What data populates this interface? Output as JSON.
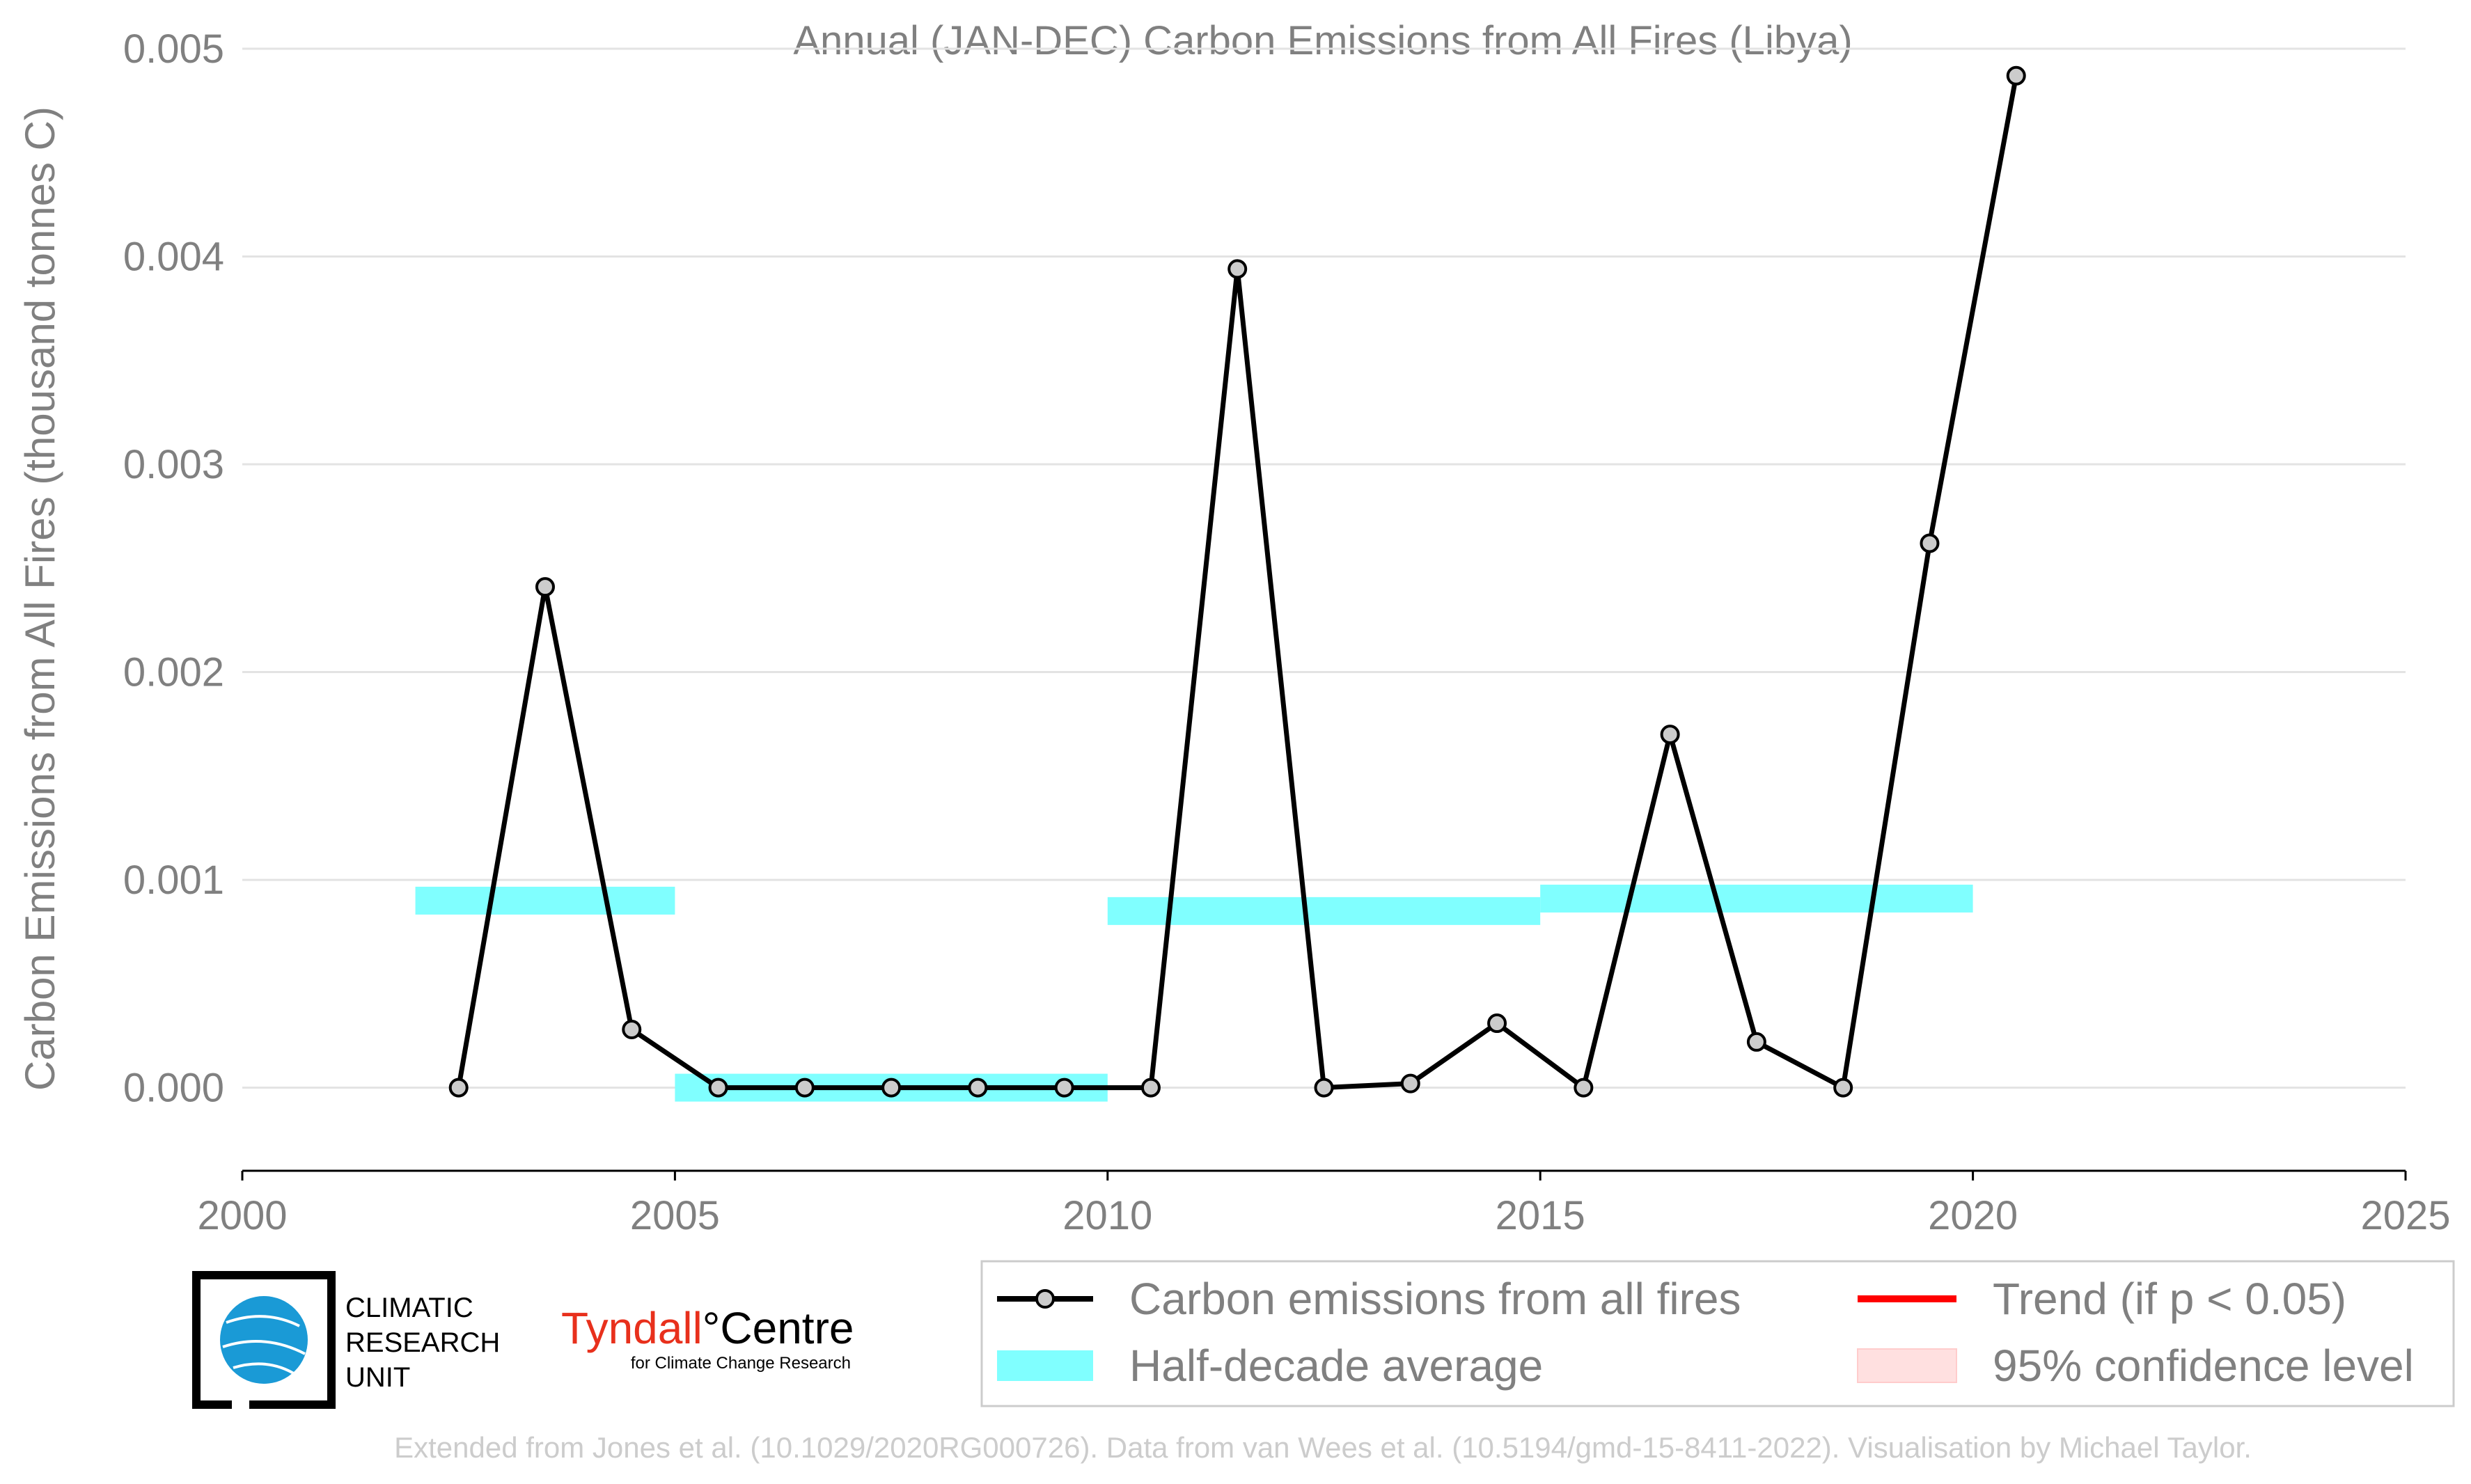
{
  "chart_data": {
    "type": "line",
    "title": "Annual (JAN-DEC) Carbon Emissions from All Fires (Libya)",
    "xlabel": "",
    "ylabel": "Carbon Emissions from All Fires (thousand tonnes C)",
    "xlim": [
      2000,
      2025
    ],
    "ylim": [
      -0.0004,
      0.005
    ],
    "xticks": [
      "2000",
      "2005",
      "2010",
      "2015",
      "2020",
      "2025"
    ],
    "yticks": [
      "0.000",
      "0.001",
      "0.002",
      "0.003",
      "0.004",
      "0.005"
    ],
    "grid": "horizontal",
    "series": [
      {
        "name": "Carbon emissions from all fires",
        "color": "#000000",
        "marker_fill": "#cccccc",
        "x": [
          2002.5,
          2003.5,
          2004.5,
          2005.5,
          2006.5,
          2007.5,
          2008.5,
          2009.5,
          2010.5,
          2011.5,
          2012.5,
          2013.5,
          2014.5,
          2015.5,
          2016.5,
          2017.5,
          2018.5,
          2019.5,
          2020.5
        ],
        "y": [
          0.0,
          0.00241,
          0.00028,
          0.0,
          0.0,
          0.0,
          0.0,
          0.0,
          0.0,
          0.00394,
          0.0,
          2e-05,
          0.00031,
          0.0,
          0.0017,
          0.00022,
          0.0,
          0.00262,
          0.00487
        ]
      }
    ],
    "half_decade_average": {
      "name": "Half-decade average",
      "color": "#80ffff",
      "segments": [
        {
          "x0": 2002,
          "x1": 2005,
          "y": 0.0009
        },
        {
          "x0": 2005,
          "x1": 2010,
          "y": 0.0
        },
        {
          "x0": 2010,
          "x1": 2015,
          "y": 0.00085
        },
        {
          "x0": 2015,
          "x1": 2020,
          "y": 0.00091
        }
      ]
    },
    "legend": {
      "placement": "bottom-right",
      "entries": [
        "Carbon emissions from all fires",
        "Half-decade average",
        "Trend (if p < 0.05)",
        "95% confidence level"
      ],
      "trend_color": "#ff0000",
      "ci_color": "#ffe0e0"
    }
  },
  "logos": {
    "cru_lines": [
      "CLIMATIC",
      "RESEARCH",
      "UNIT"
    ],
    "tyndall_red": "Tyndall",
    "tyndall_black": "°Centre",
    "tyndall_sub": "for Climate Change Research"
  },
  "footer": "Extended from Jones et al. (10.1029/2020RG000726). Data from van Wees et al. (10.5194/gmd-15-8411-2022). Visualisation by Michael Taylor."
}
